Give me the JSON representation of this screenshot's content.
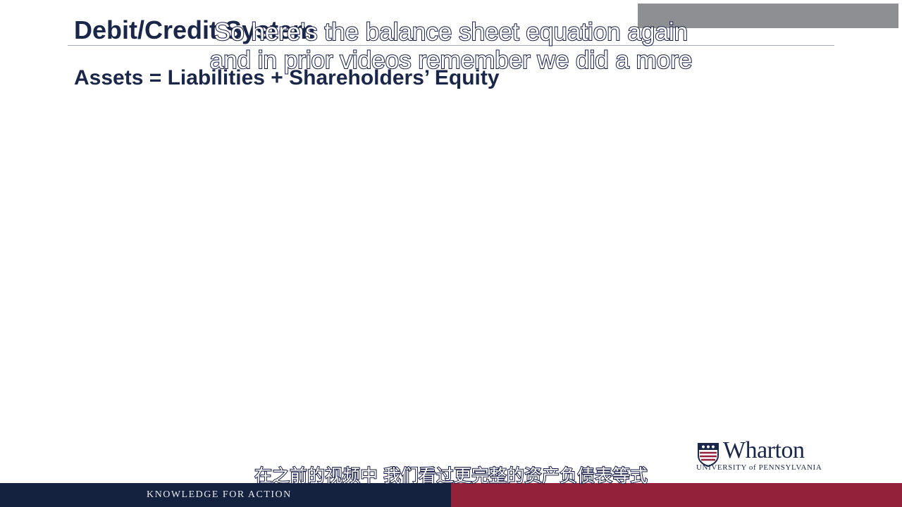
{
  "slide": {
    "title": "Debit/Credit System",
    "equation": "Assets = Liabilities + Shareholders’ Equity"
  },
  "subtitles": {
    "english_lines": [
      "So here's the balance sheet equation again",
      "and in prior videos remember we did a more"
    ],
    "chinese": "在之前的视频中 我们看过更完整的资产负债表等式"
  },
  "logo": {
    "wordmark": "Wharton",
    "subline": "UNIVERSITY of PENNSYLVANIA"
  },
  "footer": {
    "tagline": "KNOWLEDGE FOR ACTION"
  },
  "colors": {
    "navy": "#14213f",
    "crimson": "#93213a",
    "title_text": "#1b2748"
  }
}
